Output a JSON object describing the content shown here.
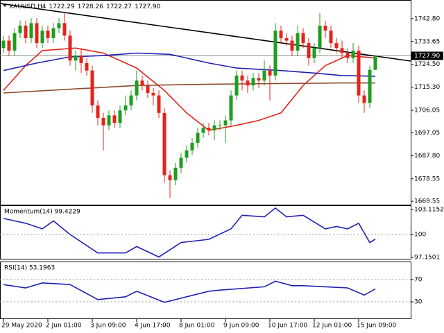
{
  "chart_data": [
    {
      "type": "candlestick",
      "title": "XAUUSD,H4",
      "header_values": [
        "1722.29",
        "1728.26",
        "1722.27",
        "1727.90"
      ],
      "xlim": [
        -0.625,
        73.375
      ],
      "xticks": [
        {
          "value": 0,
          "label": "29 May 2020"
        },
        {
          "value": 8,
          "label": "2 Jun 01:00"
        },
        {
          "value": 16,
          "label": "3 Jun 09:00"
        },
        {
          "value": 24,
          "label": "4 Jun 17:00"
        },
        {
          "value": 32,
          "label": "8 Jun 01:00"
        },
        {
          "value": 40,
          "label": "9 Jun 09:00"
        },
        {
          "value": 48,
          "label": "10 Jun 17:00"
        },
        {
          "value": 56,
          "label": "12 Jun 01:00"
        },
        {
          "value": 64,
          "label": "15 Jun 09:00"
        }
      ],
      "ylim": [
        1668.2,
        1748.9
      ],
      "yticks": [
        {
          "value": 1742.8,
          "label": "1742.80"
        },
        {
          "value": 1733.65,
          "label": "1733.65"
        },
        {
          "value": 1724.5,
          "label": "1724.50"
        },
        {
          "value": 1715.3,
          "label": "1715.30"
        },
        {
          "value": 1706.05,
          "label": "1706.05"
        },
        {
          "value": 1697.05,
          "label": "1697.05"
        },
        {
          "value": 1687.8,
          "label": "1687.80"
        },
        {
          "value": 1678.55,
          "label": "1678.55"
        },
        {
          "value": 1669.55,
          "label": "1669.55"
        }
      ],
      "up_color": "#1e9e1e",
      "down_color": "#e3241b",
      "open": [
        1731,
        1734,
        1730,
        1737,
        1740,
        1735,
        1741,
        1733,
        1738,
        1735,
        1739,
        1741,
        1736,
        1726,
        1728,
        1725,
        1722,
        1708,
        1703,
        1700,
        1704,
        1701,
        1706,
        1708,
        1712,
        1718,
        1716,
        1713,
        1712,
        1705,
        1680,
        1678,
        1683,
        1687,
        1690,
        1693,
        1697,
        1699,
        1698,
        1700,
        1700,
        1702,
        1712,
        1720,
        1718,
        1716,
        1719,
        1718,
        1722,
        1720,
        1738,
        1735,
        1734,
        1730,
        1737,
        1733,
        1727,
        1731,
        1740,
        1738,
        1733,
        1731,
        1729,
        1727,
        1730,
        1712,
        1709,
        1722.29
      ],
      "high": [
        1736,
        1736,
        1739,
        1742,
        1742,
        1743,
        1743,
        1740,
        1740,
        1741,
        1743,
        1745,
        1738,
        1730,
        1731,
        1727,
        1724,
        1710,
        1705,
        1706,
        1706,
        1708,
        1712,
        1714,
        1722,
        1720,
        1718,
        1715,
        1714,
        1707,
        1682,
        1685,
        1689,
        1692,
        1695,
        1699,
        1701,
        1701,
        1702,
        1702,
        1704,
        1714,
        1722,
        1722,
        1720,
        1721,
        1721,
        1726,
        1724,
        1741,
        1740,
        1737,
        1736,
        1740,
        1739,
        1735,
        1733,
        1745,
        1742,
        1740,
        1735,
        1734,
        1731,
        1733,
        1732,
        1714,
        1724,
        1728.26
      ],
      "low": [
        1729,
        1728,
        1728,
        1735,
        1733,
        1733,
        1731,
        1731,
        1733,
        1733,
        1737,
        1734,
        1724,
        1722,
        1721,
        1720,
        1705,
        1700,
        1690,
        1698,
        1699,
        1699,
        1704,
        1706,
        1710,
        1714,
        1711,
        1708,
        1703,
        1677,
        1671,
        1676,
        1681,
        1685,
        1688,
        1691,
        1695,
        1696,
        1694,
        1698,
        1693,
        1700,
        1710,
        1714,
        1713,
        1714,
        1715,
        1716,
        1710,
        1718,
        1733,
        1732,
        1728,
        1728,
        1731,
        1724,
        1725,
        1729,
        1735,
        1731,
        1729,
        1727,
        1725,
        1725,
        1709,
        1705,
        1707,
        1722.27
      ],
      "close": [
        1734,
        1730,
        1737,
        1740,
        1735,
        1741,
        1733,
        1738,
        1735,
        1739,
        1741,
        1736,
        1726,
        1728,
        1725,
        1722,
        1708,
        1703,
        1700,
        1704,
        1701,
        1706,
        1708,
        1712,
        1718,
        1716,
        1713,
        1712,
        1705,
        1680,
        1678,
        1683,
        1687,
        1690,
        1693,
        1697,
        1699,
        1698,
        1700,
        1700,
        1702,
        1712,
        1720,
        1718,
        1716,
        1719,
        1718,
        1722,
        1720,
        1738,
        1735,
        1734,
        1730,
        1737,
        1733,
        1727,
        1731,
        1740,
        1738,
        1733,
        1731,
        1729,
        1727,
        1730,
        1712,
        1709,
        1722.29,
        1727.9
      ],
      "series": [
        {
          "color": "#e3241b",
          "x": [
            0,
            4,
            7,
            13,
            18,
            24,
            29,
            33,
            37,
            42,
            46,
            50,
            54,
            58,
            62,
            67
          ],
          "values": [
            1714,
            1724,
            1730,
            1731,
            1729,
            1723,
            1714,
            1705,
            1698,
            1700,
            1702,
            1705,
            1716,
            1724,
            1728,
            1727
          ]
        },
        {
          "color": "#1f1fb4",
          "x": [
            0,
            6,
            12,
            18,
            24,
            30,
            37,
            42,
            46,
            50,
            56,
            61,
            67
          ],
          "values": [
            1722,
            1725,
            1727.5,
            1728,
            1729,
            1728.5,
            1725,
            1723,
            1722.5,
            1722,
            1721,
            1720,
            1719.7
          ]
        },
        {
          "color": "#8b4a2b",
          "x": [
            0,
            12,
            24,
            37,
            50,
            61,
            67
          ],
          "values": [
            1713,
            1714.5,
            1716,
            1716.5,
            1716.8,
            1717,
            1717
          ]
        },
        {
          "color": "#000000",
          "x": [
            -0.625,
            73.375
          ],
          "values": [
            1748.9,
            1725.8
          ]
        }
      ],
      "price_line": {
        "value": 1727.9,
        "label": "1727.90",
        "color": "#8c8c8c"
      }
    },
    {
      "type": "line",
      "title": "Momentum(14) 99.4229",
      "ylim": [
        97.06,
        103.55
      ],
      "yticks": [
        {
          "value": 103.1152,
          "label": "103.1152"
        },
        100,
        {
          "value": 97.1501,
          "label": "97.1501"
        }
      ],
      "levels": [
        100
      ],
      "series": [
        {
          "color": "#1f1fb4",
          "x": [
            0,
            2,
            4,
            7,
            9,
            12,
            17,
            22,
            24,
            28,
            32,
            37,
            41,
            43,
            47,
            49,
            51,
            54,
            58,
            60,
            62,
            64,
            66,
            67
          ],
          "values": [
            102,
            101.7,
            101.4,
            100.7,
            101.7,
            100,
            97.7,
            97.7,
            98.5,
            97.2,
            99,
            99.4,
            100.7,
            102.4,
            102.2,
            103.3,
            102.2,
            102.4,
            100.7,
            101,
            100.7,
            101.4,
            99,
            99.4229
          ]
        }
      ]
    },
    {
      "type": "line",
      "title": "RSI(14) 53.1963",
      "ylim": [
        0,
        100
      ],
      "yticks": [
        70,
        30
      ],
      "levels": [
        70,
        30
      ],
      "series": [
        {
          "color": "#1f1fb4",
          "x": [
            0,
            4,
            7,
            12,
            17,
            22,
            24,
            29,
            33,
            37,
            39,
            47,
            49,
            52,
            54,
            58,
            62,
            65,
            67
          ],
          "values": [
            61,
            55,
            64,
            61,
            34,
            39,
            49,
            29,
            39,
            49,
            51,
            57,
            67,
            59,
            59,
            57,
            55,
            42,
            53.1963
          ]
        }
      ]
    }
  ]
}
